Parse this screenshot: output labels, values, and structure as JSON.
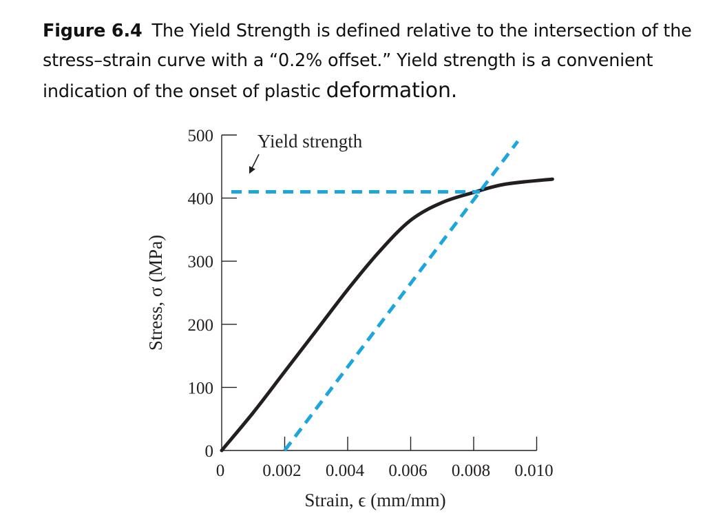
{
  "caption": {
    "label": "Figure 6.4",
    "text_main": "The Yield Strength is defined relative to the intersection of the stress–strain curve with a “0.2% offset.” Yield strength is a convenient indication of the onset of plastic",
    "text_emphasis": "deformation."
  },
  "colors": {
    "curve": "#231f20",
    "offset_line": "#1ca6dd",
    "yield_line": "#1ca6dd",
    "axis": "#231f20"
  },
  "chart_data": {
    "type": "line",
    "title": "",
    "xlabel": "Strain, ϵ (mm/mm)",
    "ylabel": "Stress, σ (MPa)",
    "xlim": [
      0,
      0.0105
    ],
    "ylim": [
      0,
      500
    ],
    "x_ticks": [
      0,
      0.002,
      0.004,
      0.006,
      0.008,
      0.01
    ],
    "x_tick_labels": [
      "0",
      "0.002",
      "0.004",
      "0.006",
      "0.008",
      "0.010"
    ],
    "y_ticks": [
      0,
      100,
      200,
      300,
      400,
      500
    ],
    "y_tick_labels": [
      "0",
      "100",
      "200",
      "300",
      "400",
      "500"
    ],
    "grid": false,
    "series": [
      {
        "x": [
          0,
          0.001,
          0.002,
          0.003,
          0.004,
          0.005,
          0.006,
          0.007,
          0.008,
          0.009,
          0.0105
        ],
        "y": [
          0,
          60,
          125,
          190,
          255,
          315,
          365,
          393,
          409,
          422,
          430
        ]
      },
      {
        "x": [
          0.002,
          0.0094
        ],
        "y": [
          0,
          490
        ]
      },
      {
        "x": [
          0,
          0.0082
        ],
        "y": [
          410,
          410
        ]
      }
    ],
    "annotations": [
      {
        "text": "Yield strength",
        "points_to": {
          "x": 0.0005,
          "y": 410
        }
      }
    ]
  }
}
